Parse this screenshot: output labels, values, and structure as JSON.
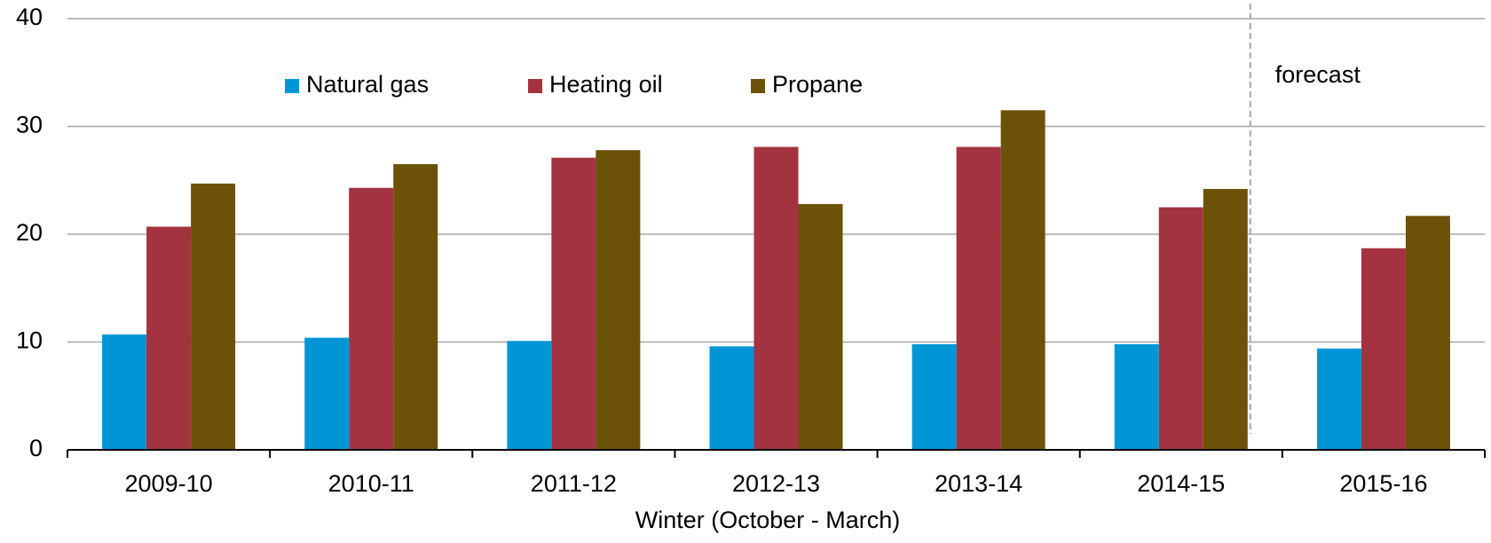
{
  "chart_data": {
    "type": "bar",
    "x_label": "Winter (October - March)",
    "categories": [
      "2009-10",
      "2010-11",
      "2011-12",
      "2012-13",
      "2013-14",
      "2014-15",
      "2015-16"
    ],
    "series": [
      {
        "name": "Natural gas",
        "color": "#0096d6",
        "values": [
          10.7,
          10.4,
          10.1,
          9.6,
          9.8,
          9.8,
          9.4
        ]
      },
      {
        "name": "Heating oil",
        "color": "#a33340",
        "values": [
          20.7,
          24.3,
          27.1,
          28.1,
          28.1,
          22.5,
          18.7
        ]
      },
      {
        "name": "Propane",
        "color": "#6b5208",
        "values": [
          24.7,
          26.5,
          27.8,
          22.8,
          31.5,
          24.2,
          21.7
        ]
      }
    ],
    "annotations": [
      {
        "text": "forecast"
      }
    ],
    "ylim": [
      0,
      40
    ],
    "yticks": [
      0,
      10,
      20,
      30,
      40
    ],
    "grid": true,
    "legend": "top"
  }
}
